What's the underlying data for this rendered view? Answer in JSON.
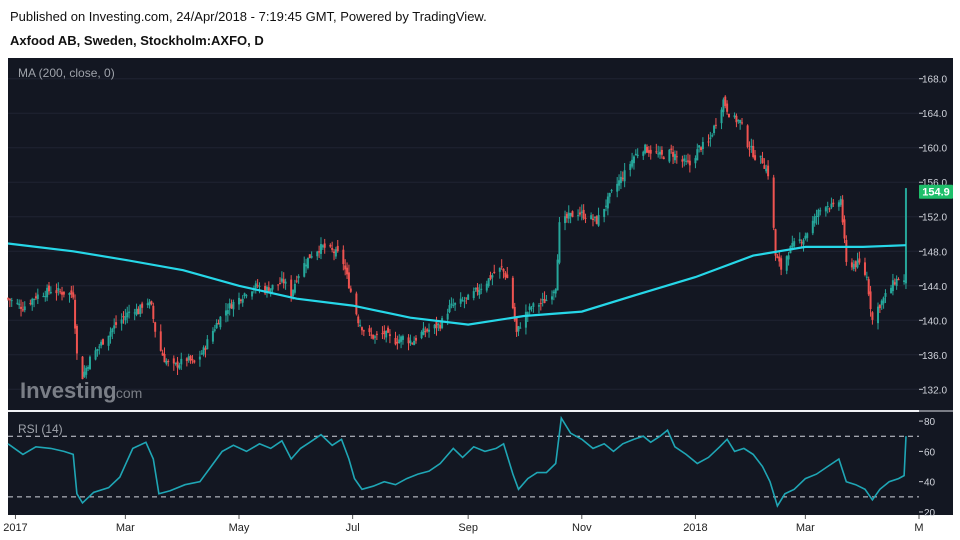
{
  "header": {
    "published_line": "Published on Investing.com, 24/Apr/2018 - 7:19:45 GMT, Powered by TradingView.",
    "instrument_line": "Axfood AB, Sweden, Stockholm:AXFO, D"
  },
  "watermark": {
    "brand": "Investing",
    "suffix": ".com"
  },
  "colors": {
    "background": "#131722",
    "up": "#26a69a",
    "down": "#ef5350",
    "ma_line": "#26d7e8",
    "rsi_line": "#1fa6b5",
    "price_tag": "#1fbf6b"
  },
  "chart_data": [
    {
      "type": "candlestick",
      "title": "Axfood AB, Sweden, Stockholm:AXFO, D",
      "indicator_label": "MA (200, close, 0)",
      "x_ticks": [
        "2017",
        "Mar",
        "May",
        "Jul",
        "Sep",
        "Nov",
        "2018",
        "Mar",
        "M"
      ],
      "x_tick_dates": [
        "2017-01-01",
        "2017-03-01",
        "2017-05-01",
        "2017-07-01",
        "2017-09-01",
        "2017-11-01",
        "2018-01-01",
        "2018-03-01",
        "2018-05-01"
      ],
      "x_range": [
        "2016-12-28",
        "2018-05-01"
      ],
      "y_ticks": [
        132.0,
        136.0,
        140.0,
        144.0,
        148.0,
        152.0,
        156.0,
        160.0,
        164.0,
        168.0
      ],
      "ylim": [
        129.6,
        170.4
      ],
      "last_price": 154.9,
      "close_series": [
        [
          "2016-12-28",
          142.5
        ],
        [
          "2017-01-05",
          141.5
        ],
        [
          "2017-01-12",
          142.8
        ],
        [
          "2017-01-20",
          143.5
        ],
        [
          "2017-01-27",
          143.2
        ],
        [
          "2017-02-01",
          143.0
        ],
        [
          "2017-02-03",
          136.0
        ],
        [
          "2017-02-06",
          133.5
        ],
        [
          "2017-02-10",
          135.5
        ],
        [
          "2017-02-15",
          137.0
        ],
        [
          "2017-02-20",
          138.5
        ],
        [
          "2017-02-24",
          139.5
        ],
        [
          "2017-03-01",
          140.5
        ],
        [
          "2017-03-05",
          141.5
        ],
        [
          "2017-03-08",
          141.0
        ],
        [
          "2017-03-12",
          142.5
        ],
        [
          "2017-03-15",
          141.5
        ],
        [
          "2017-03-18",
          137.5
        ],
        [
          "2017-03-22",
          135.5
        ],
        [
          "2017-03-26",
          134.5
        ],
        [
          "2017-03-30",
          135.0
        ],
        [
          "2017-04-03",
          135.5
        ],
        [
          "2017-04-07",
          135.0
        ],
        [
          "2017-04-12",
          136.5
        ],
        [
          "2017-04-15",
          138.0
        ],
        [
          "2017-04-20",
          140.0
        ],
        [
          "2017-04-25",
          141.5
        ],
        [
          "2017-05-01",
          142.5
        ],
        [
          "2017-05-06",
          143.5
        ],
        [
          "2017-05-11",
          144.0
        ],
        [
          "2017-05-15",
          143.5
        ],
        [
          "2017-05-20",
          144.0
        ],
        [
          "2017-05-25",
          144.5
        ],
        [
          "2017-05-29",
          143.0
        ],
        [
          "2017-06-01",
          145.0
        ],
        [
          "2017-06-05",
          146.5
        ],
        [
          "2017-06-10",
          148.0
        ],
        [
          "2017-06-15",
          148.5
        ],
        [
          "2017-06-20",
          148.0
        ],
        [
          "2017-06-25",
          147.5
        ],
        [
          "2017-06-28",
          145.0
        ],
        [
          "2017-07-01",
          142.5
        ],
        [
          "2017-07-04",
          140.0
        ],
        [
          "2017-07-08",
          138.5
        ],
        [
          "2017-07-13",
          138.0
        ],
        [
          "2017-07-18",
          138.5
        ],
        [
          "2017-07-23",
          137.5
        ],
        [
          "2017-07-28",
          138.0
        ],
        [
          "2017-08-02",
          137.5
        ],
        [
          "2017-08-07",
          138.5
        ],
        [
          "2017-08-12",
          139.0
        ],
        [
          "2017-08-17",
          139.5
        ],
        [
          "2017-08-22",
          141.5
        ],
        [
          "2017-08-27",
          142.0
        ],
        [
          "2017-09-01",
          142.5
        ],
        [
          "2017-09-06",
          143.5
        ],
        [
          "2017-09-11",
          144.5
        ],
        [
          "2017-09-15",
          145.5
        ],
        [
          "2017-09-19",
          146.0
        ],
        [
          "2017-09-23",
          144.5
        ],
        [
          "2017-09-27",
          138.5
        ],
        [
          "2017-10-01",
          140.5
        ],
        [
          "2017-10-05",
          141.5
        ],
        [
          "2017-10-10",
          142.0
        ],
        [
          "2017-10-14",
          142.5
        ],
        [
          "2017-10-18",
          144.0
        ],
        [
          "2017-10-20",
          151.0
        ],
        [
          "2017-10-25",
          152.0
        ],
        [
          "2017-10-30",
          152.5
        ],
        [
          "2017-11-04",
          152.0
        ],
        [
          "2017-11-09",
          151.5
        ],
        [
          "2017-11-14",
          153.5
        ],
        [
          "2017-11-19",
          155.5
        ],
        [
          "2017-11-24",
          157.0
        ],
        [
          "2017-11-29",
          159.0
        ],
        [
          "2017-12-04",
          160.0
        ],
        [
          "2017-12-09",
          159.5
        ],
        [
          "2017-12-14",
          159.0
        ],
        [
          "2017-12-19",
          159.5
        ],
        [
          "2017-12-24",
          158.5
        ],
        [
          "2017-12-29",
          158.0
        ],
        [
          "2018-01-03",
          160.0
        ],
        [
          "2018-01-08",
          160.5
        ],
        [
          "2018-01-12",
          163.0
        ],
        [
          "2018-01-16",
          165.5
        ],
        [
          "2018-01-20",
          163.5
        ],
        [
          "2018-01-25",
          163.0
        ],
        [
          "2018-01-29",
          160.5
        ],
        [
          "2018-02-02",
          159.0
        ],
        [
          "2018-02-06",
          158.5
        ],
        [
          "2018-02-10",
          156.5
        ],
        [
          "2018-02-13",
          147.5
        ],
        [
          "2018-02-16",
          146.0
        ],
        [
          "2018-02-20",
          148.0
        ],
        [
          "2018-02-24",
          149.0
        ],
        [
          "2018-02-28",
          149.5
        ],
        [
          "2018-03-04",
          151.0
        ],
        [
          "2018-03-08",
          152.5
        ],
        [
          "2018-03-12",
          153.5
        ],
        [
          "2018-03-16",
          153.0
        ],
        [
          "2018-03-20",
          154.0
        ],
        [
          "2018-03-23",
          146.5
        ],
        [
          "2018-03-26",
          146.5
        ],
        [
          "2018-03-30",
          146.5
        ],
        [
          "2018-04-03",
          145.0
        ],
        [
          "2018-04-06",
          140.0
        ],
        [
          "2018-04-09",
          141.5
        ],
        [
          "2018-04-12",
          142.5
        ],
        [
          "2018-04-15",
          143.5
        ],
        [
          "2018-04-18",
          144.5
        ],
        [
          "2018-04-21",
          145.0
        ],
        [
          "2018-04-23",
          144.5
        ],
        [
          "2018-04-24",
          154.9
        ]
      ],
      "ma_series": [
        [
          "2016-12-28",
          148.9
        ],
        [
          "2017-02-01",
          148.0
        ],
        [
          "2017-03-01",
          147.0
        ],
        [
          "2017-04-01",
          145.8
        ],
        [
          "2017-05-01",
          144.0
        ],
        [
          "2017-06-01",
          142.5
        ],
        [
          "2017-07-01",
          141.7
        ],
        [
          "2017-08-01",
          140.3
        ],
        [
          "2017-09-01",
          139.5
        ],
        [
          "2017-10-01",
          140.5
        ],
        [
          "2017-11-01",
          141.0
        ],
        [
          "2017-12-01",
          143.0
        ],
        [
          "2018-01-01",
          145.0
        ],
        [
          "2018-02-01",
          147.5
        ],
        [
          "2018-03-01",
          148.5
        ],
        [
          "2018-04-01",
          148.5
        ],
        [
          "2018-04-24",
          148.7
        ]
      ]
    },
    {
      "type": "line",
      "indicator_label": "RSI (14)",
      "y_ticks": [
        20,
        40,
        60,
        80
      ],
      "ylim": [
        18,
        86
      ],
      "bands": [
        30,
        70
      ],
      "x_range": [
        "2016-12-28",
        "2018-05-01"
      ],
      "series": [
        [
          "2016-12-28",
          65
        ],
        [
          "2017-01-05",
          58
        ],
        [
          "2017-01-12",
          63
        ],
        [
          "2017-01-20",
          62
        ],
        [
          "2017-01-27",
          60
        ],
        [
          "2017-02-01",
          58
        ],
        [
          "2017-02-03",
          32
        ],
        [
          "2017-02-06",
          26
        ],
        [
          "2017-02-12",
          33
        ],
        [
          "2017-02-20",
          36
        ],
        [
          "2017-02-26",
          43
        ],
        [
          "2017-03-05",
          62
        ],
        [
          "2017-03-12",
          66
        ],
        [
          "2017-03-16",
          55
        ],
        [
          "2017-03-19",
          32
        ],
        [
          "2017-03-25",
          34
        ],
        [
          "2017-04-02",
          38
        ],
        [
          "2017-04-10",
          40
        ],
        [
          "2017-04-16",
          50
        ],
        [
          "2017-04-22",
          60
        ],
        [
          "2017-04-28",
          64
        ],
        [
          "2017-05-05",
          60
        ],
        [
          "2017-05-12",
          65
        ],
        [
          "2017-05-18",
          62
        ],
        [
          "2017-05-24",
          67
        ],
        [
          "2017-05-29",
          55
        ],
        [
          "2017-06-03",
          62
        ],
        [
          "2017-06-08",
          66
        ],
        [
          "2017-06-14",
          71
        ],
        [
          "2017-06-20",
          64
        ],
        [
          "2017-06-25",
          68
        ],
        [
          "2017-06-29",
          55
        ],
        [
          "2017-07-02",
          42
        ],
        [
          "2017-07-06",
          35
        ],
        [
          "2017-07-12",
          37
        ],
        [
          "2017-07-18",
          40
        ],
        [
          "2017-07-24",
          38
        ],
        [
          "2017-07-30",
          42
        ],
        [
          "2017-08-05",
          45
        ],
        [
          "2017-08-11",
          47
        ],
        [
          "2017-08-17",
          52
        ],
        [
          "2017-08-24",
          62
        ],
        [
          "2017-08-29",
          56
        ],
        [
          "2017-09-04",
          63
        ],
        [
          "2017-09-10",
          60
        ],
        [
          "2017-09-16",
          62
        ],
        [
          "2017-09-20",
          65
        ],
        [
          "2017-09-25",
          45
        ],
        [
          "2017-09-28",
          35
        ],
        [
          "2017-10-03",
          42
        ],
        [
          "2017-10-08",
          46
        ],
        [
          "2017-10-13",
          46
        ],
        [
          "2017-10-18",
          52
        ],
        [
          "2017-10-21",
          82
        ],
        [
          "2017-10-26",
          72
        ],
        [
          "2017-11-01",
          68
        ],
        [
          "2017-11-07",
          62
        ],
        [
          "2017-11-13",
          65
        ],
        [
          "2017-11-18",
          60
        ],
        [
          "2017-11-23",
          65
        ],
        [
          "2017-11-29",
          68
        ],
        [
          "2017-12-04",
          70
        ],
        [
          "2017-12-08",
          66
        ],
        [
          "2017-12-13",
          70
        ],
        [
          "2017-12-17",
          74
        ],
        [
          "2017-12-21",
          63
        ],
        [
          "2017-12-27",
          58
        ],
        [
          "2018-01-02",
          52
        ],
        [
          "2018-01-08",
          56
        ],
        [
          "2018-01-14",
          63
        ],
        [
          "2018-01-18",
          68
        ],
        [
          "2018-01-22",
          60
        ],
        [
          "2018-01-27",
          62
        ],
        [
          "2018-02-01",
          58
        ],
        [
          "2018-02-06",
          50
        ],
        [
          "2018-02-10",
          40
        ],
        [
          "2018-02-14",
          24
        ],
        [
          "2018-02-18",
          32
        ],
        [
          "2018-02-23",
          35
        ],
        [
          "2018-03-01",
          42
        ],
        [
          "2018-03-07",
          45
        ],
        [
          "2018-03-13",
          50
        ],
        [
          "2018-03-19",
          55
        ],
        [
          "2018-03-23",
          40
        ],
        [
          "2018-03-28",
          38
        ],
        [
          "2018-04-02",
          35
        ],
        [
          "2018-04-06",
          28
        ],
        [
          "2018-04-10",
          35
        ],
        [
          "2018-04-15",
          40
        ],
        [
          "2018-04-20",
          42
        ],
        [
          "2018-04-23",
          44
        ],
        [
          "2018-04-24",
          70
        ]
      ]
    }
  ]
}
